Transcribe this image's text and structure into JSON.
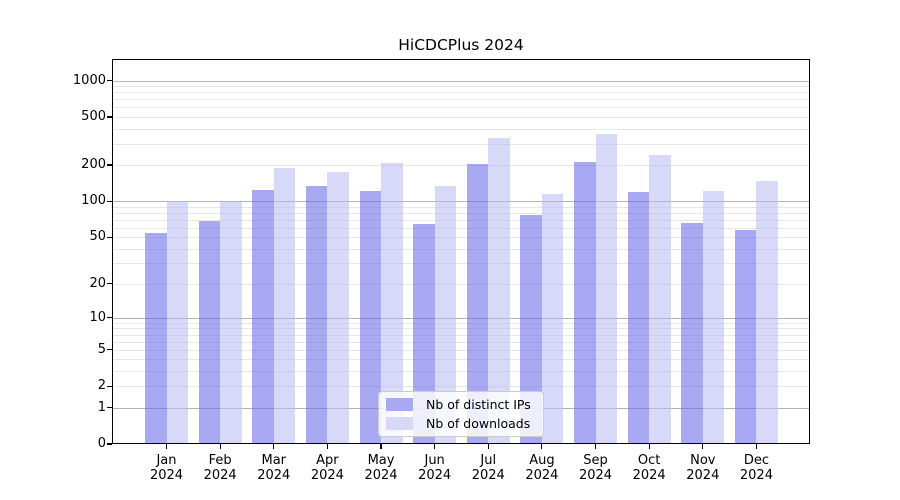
{
  "figure": {
    "title": "HiCDCPlus 2024"
  },
  "legend": {
    "items": [
      {
        "label": "Nb of distinct IPs",
        "series_key": "ips"
      },
      {
        "label": "Nb of downloads",
        "series_key": "downloads"
      }
    ]
  },
  "colors": {
    "ips": "#a9a9f3",
    "downloads": "#d8d8f9",
    "ips_fill": "rgba(99,99,233,0.55)",
    "downloads_fill": "rgba(184,184,244,0.55)",
    "grid_major": "#b3b3b3",
    "grid_minor": "#e7e7e7",
    "spine": "#000000",
    "text": "#000000",
    "legend_border": "#cccccc"
  },
  "chart_data": {
    "type": "bar",
    "title": "HiCDCPlus 2024",
    "scale": "log10(value+1)",
    "grid": "horizontal log major+minor, visible through translucent bars",
    "legend_position": "inside lower-center",
    "categories": [
      "Jan",
      "Feb",
      "Mar",
      "Apr",
      "May",
      "Jun",
      "Jul",
      "Aug",
      "Sep",
      "Oct",
      "Nov",
      "Dec"
    ],
    "year_line": "2024",
    "series": [
      {
        "name": "Nb of distinct IPs",
        "key": "ips",
        "values": [
          54,
          69,
          125,
          135,
          121,
          65,
          206,
          77,
          211,
          120,
          66,
          57
        ]
      },
      {
        "name": "Nb of downloads",
        "key": "downloads",
        "values": [
          100,
          98,
          191,
          176,
          210,
          135,
          334,
          116,
          362,
          244,
          123,
          149
        ]
      }
    ],
    "yticks": [
      0,
      1,
      2,
      5,
      10,
      20,
      50,
      100,
      200,
      500,
      1000
    ],
    "minor_gridline_values": [
      2,
      3,
      4,
      5,
      6,
      7,
      8,
      9,
      20,
      30,
      40,
      50,
      60,
      70,
      80,
      90,
      200,
      300,
      400,
      500,
      600,
      700,
      800,
      900
    ],
    "major_gridline_values": [
      1,
      10,
      100,
      1000
    ],
    "ylim": [
      0,
      1500
    ],
    "xlabel": "",
    "ylabel": ""
  }
}
